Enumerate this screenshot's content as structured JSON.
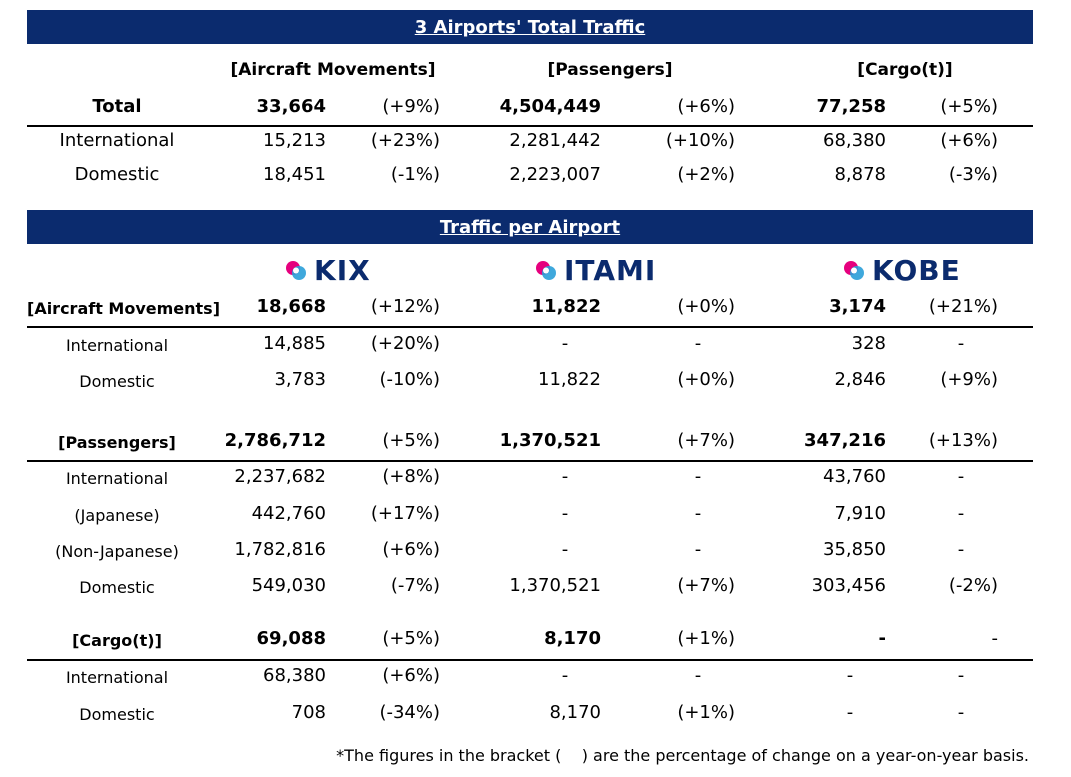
{
  "total_section": {
    "title": "3 Airports' Total Traffic",
    "col_headers": [
      "[Aircraft Movements]",
      "[Passengers]",
      "[Cargo(t)]"
    ],
    "rows": [
      {
        "label": "Total",
        "vals": [
          "33,664",
          "(+9%)",
          "4,504,449",
          "(+6%)",
          "77,258",
          "(+5%)"
        ]
      },
      {
        "label": "International",
        "vals": [
          "15,213",
          "(+23%)",
          "2,281,442",
          "(+10%)",
          "68,380",
          "(+6%)"
        ]
      },
      {
        "label": "Domestic",
        "vals": [
          "18,451",
          "(-1%)",
          "2,223,007",
          "(+2%)",
          "8,878",
          "(-3%)"
        ]
      }
    ]
  },
  "per_airport": {
    "title": "Traffic per Airport",
    "airports": [
      {
        "logo_text": "KIX",
        "logo_icon": "kix-logo-icon"
      },
      {
        "logo_text": "ITAMI",
        "logo_icon": "itami-logo-icon"
      },
      {
        "logo_text": "KOBE",
        "logo_icon": "kobe-logo-icon"
      }
    ],
    "blocks": [
      {
        "header": "[Aircraft Movements]",
        "header_vals": [
          "18,668",
          "(+12%)",
          "11,822",
          "(+0%)",
          "3,174",
          "(+21%)"
        ],
        "rows": [
          {
            "label": "International",
            "vals": [
              "14,885",
              "(+20%)",
              "-",
              "-",
              "328",
              "-"
            ]
          },
          {
            "label": "Domestic",
            "vals": [
              "3,783",
              "(-10%)",
              "11,822",
              "(+0%)",
              "2,846",
              "(+9%)"
            ]
          }
        ]
      },
      {
        "header": "[Passengers]",
        "header_vals": [
          "2,786,712",
          "(+5%)",
          "1,370,521",
          "(+7%)",
          "347,216",
          "(+13%)"
        ],
        "rows": [
          {
            "label": "International",
            "vals": [
              "2,237,682",
              "(+8%)",
              "-",
              "-",
              "43,760",
              "-"
            ]
          },
          {
            "label": "(Japanese)",
            "vals": [
              "442,760",
              "(+17%)",
              "-",
              "-",
              "7,910",
              "-"
            ]
          },
          {
            "label": "(Non-Japanese)",
            "vals": [
              "1,782,816",
              "(+6%)",
              "-",
              "-",
              "35,850",
              "-"
            ]
          },
          {
            "label": "Domestic",
            "vals": [
              "549,030",
              "(-7%)",
              "1,370,521",
              "(+7%)",
              "303,456",
              "(-2%)"
            ]
          }
        ]
      },
      {
        "header": "[Cargo(t)]",
        "header_vals": [
          "69,088",
          "(+5%)",
          "8,170",
          "(+1%)",
          "-",
          "-"
        ],
        "rows": [
          {
            "label": "International",
            "vals": [
              "68,380",
              "(+6%)",
              "-",
              "-",
              "-",
              "-"
            ]
          },
          {
            "label": "Domestic",
            "vals": [
              "708",
              "(-34%)",
              "8,170",
              "(+1%)",
              "-",
              "-"
            ]
          }
        ]
      }
    ]
  },
  "footnote": "*The figures in the bracket (    ) are the percentage of change on a year-on-year basis.",
  "colors": {
    "banner": "#0b2b6e",
    "logo_pink": "#e6007e",
    "logo_blue": "#2a9fd8"
  }
}
